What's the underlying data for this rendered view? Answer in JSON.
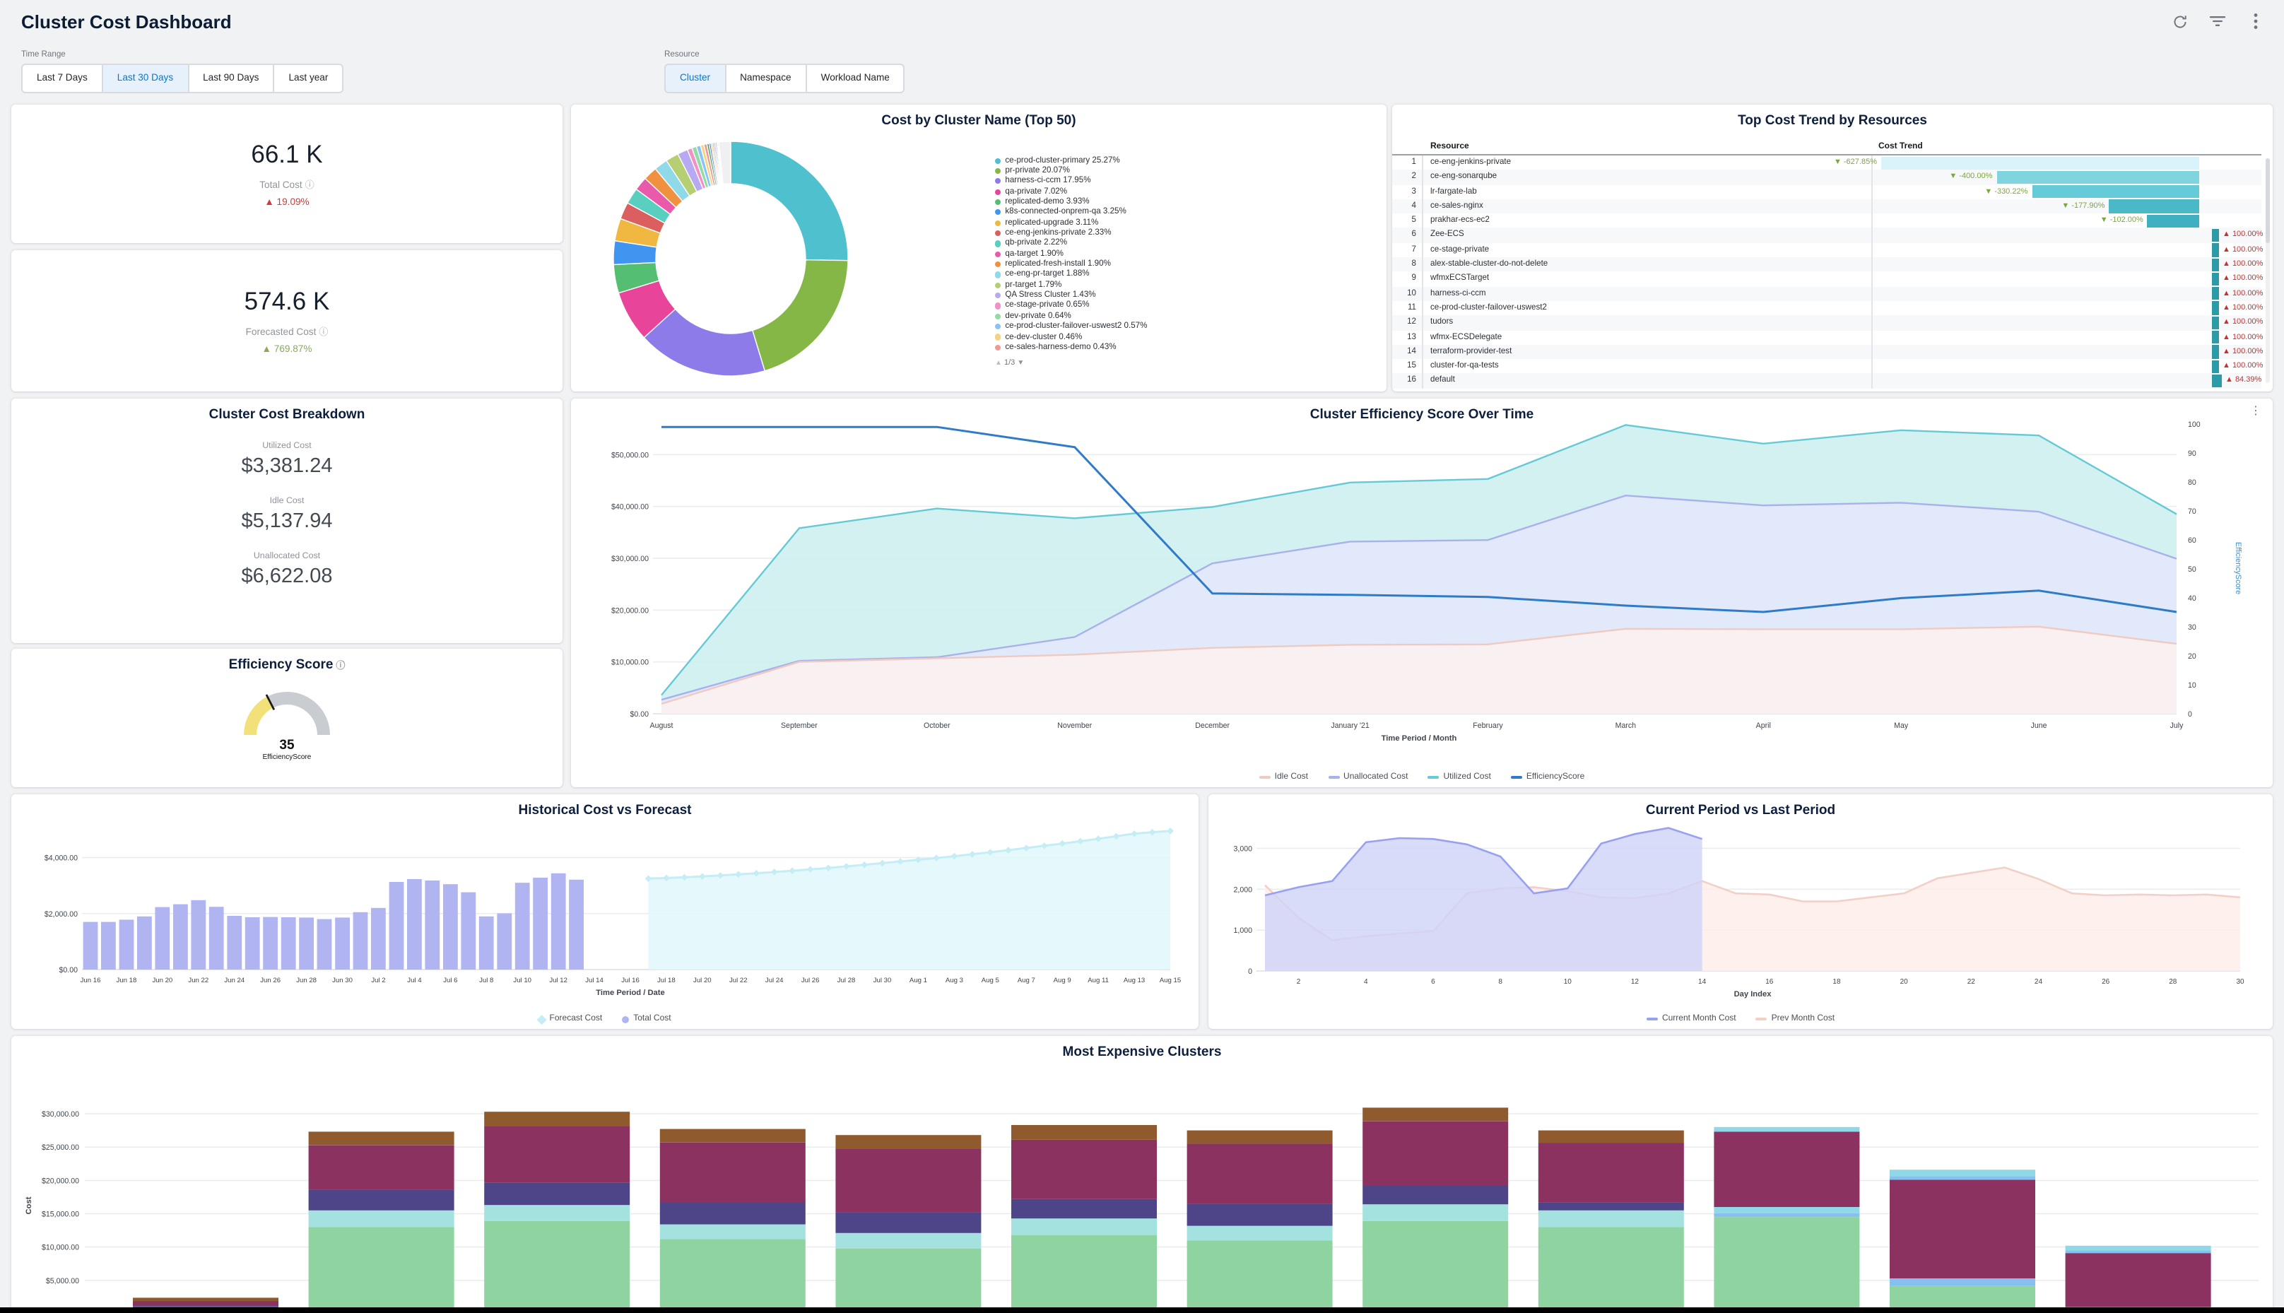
{
  "header": {
    "title": "Cluster Cost Dashboard"
  },
  "topbar_icons": [
    "refresh-icon",
    "filter-icon",
    "kebab-icon"
  ],
  "filters": {
    "time_range": {
      "label": "Time Range",
      "options": [
        "Last 7 Days",
        "Last 30 Days",
        "Last 90 Days",
        "Last year"
      ],
      "selected": "Last 30 Days"
    },
    "resource": {
      "label": "Resource",
      "options": [
        "Cluster",
        "Namespace",
        "Workload Name"
      ],
      "selected": "Cluster"
    }
  },
  "kpis": {
    "total": {
      "value": "66.1 K",
      "label": "Total Cost",
      "delta": "19.09%",
      "direction": "up",
      "delta_color": "#cf3b3b"
    },
    "forecast": {
      "value": "574.6 K",
      "label": "Forecasted Cost",
      "delta": "769.87%",
      "direction": "up",
      "delta_color": "#87ab56"
    }
  },
  "breakdown": {
    "title": "Cluster Cost Breakdown",
    "items": [
      {
        "label": "Utilized Cost",
        "value": "$3,381.24"
      },
      {
        "label": "Idle Cost",
        "value": "$5,137.94"
      },
      {
        "label": "Unallocated Cost",
        "value": "$6,622.08"
      }
    ]
  },
  "chart_data": [
    {
      "type": "pie",
      "title": "Cost by Cluster Name (Top 50)",
      "pagination": "1/3",
      "slices": [
        {
          "label": "ce-prod-cluster-primary",
          "pct": 25.27,
          "color": "#4fc0ce"
        },
        {
          "label": "pr-private",
          "pct": 20.07,
          "color": "#85b747"
        },
        {
          "label": "harness-ci-ccm",
          "pct": 17.95,
          "color": "#8d7be9"
        },
        {
          "label": "qa-private",
          "pct": 7.02,
          "color": "#e8449a"
        },
        {
          "label": "replicated-demo",
          "pct": 3.93,
          "color": "#54be73"
        },
        {
          "label": "k8s-connected-onprem-qa",
          "pct": 3.25,
          "color": "#4095f0"
        },
        {
          "label": "replicated-upgrade",
          "pct": 3.11,
          "color": "#f0b840"
        },
        {
          "label": "ce-eng-jenkins-private",
          "pct": 2.33,
          "color": "#db5f5f"
        },
        {
          "label": "qb-private",
          "pct": 2.22,
          "color": "#58cfbf"
        },
        {
          "label": "qa-target",
          "pct": 1.9,
          "color": "#ea5aab"
        },
        {
          "label": "replicated-fresh-install",
          "pct": 1.9,
          "color": "#f0913f"
        },
        {
          "label": "ce-eng-pr-target",
          "pct": 1.88,
          "color": "#8fd9e8"
        },
        {
          "label": "pr-target",
          "pct": 1.79,
          "color": "#b6cf73"
        },
        {
          "label": "QA Stress Cluster",
          "pct": 1.43,
          "color": "#b7a9f2"
        },
        {
          "label": "ce-stage-private",
          "pct": 0.65,
          "color": "#f291c6"
        },
        {
          "label": "dev-private",
          "pct": 0.64,
          "color": "#90dca2"
        },
        {
          "label": "ce-prod-cluster-failover-uswest2",
          "pct": 0.57,
          "color": "#88c3f5"
        },
        {
          "label": "ce-dev-cluster",
          "pct": 0.46,
          "color": "#f5d385"
        },
        {
          "label": "ce-sales-harness-demo",
          "pct": 0.43,
          "color": "#ee9b94"
        }
      ],
      "others": [
        {
          "pct": 0.3,
          "color": "#4a9c63"
        },
        {
          "pct": 0.25,
          "color": "#3a79c9"
        },
        {
          "pct": 0.22,
          "color": "#e8c84a"
        },
        {
          "pct": 0.2,
          "color": "#d9619c"
        },
        {
          "pct": 0.2,
          "color": "#56b8ae"
        },
        {
          "pct": 0.18,
          "color": "#8a6fd1"
        },
        {
          "pct": 0.15,
          "color": "#29506f"
        },
        {
          "pct": 0.15,
          "color": "#9aa0a6"
        },
        {
          "pct": 1.62,
          "color": "#f0f0f2"
        }
      ]
    },
    {
      "type": "table",
      "title": "Top Cost Trend by Resources",
      "columns": [
        "Resource",
        "Cost Trend"
      ],
      "max_abs_pct": 627.85,
      "rows": [
        {
          "n": 1,
          "resource": "ce-eng-jenkins-private",
          "pct": -627.85,
          "bar_color": "#d8f3fa"
        },
        {
          "n": 2,
          "resource": "ce-eng-sonarqube",
          "pct": -400.0,
          "bar_color": "#7fd4de"
        },
        {
          "n": 3,
          "resource": "lr-fargate-lab",
          "pct": -330.22,
          "bar_color": "#66cbd8"
        },
        {
          "n": 4,
          "resource": "ce-sales-nginx",
          "pct": -177.9,
          "bar_color": "#4bb8c8"
        },
        {
          "n": 5,
          "resource": "prakhar-ecs-ec2",
          "pct": -102.0,
          "bar_color": "#3fb0c2"
        },
        {
          "n": 6,
          "resource": "Zee-ECS",
          "pct": 100.0,
          "bar_color": "#2d9aa8"
        },
        {
          "n": 7,
          "resource": "ce-stage-private",
          "pct": 100.0,
          "bar_color": "#2d9aa8"
        },
        {
          "n": 8,
          "resource": "alex-stable-cluster-do-not-delete",
          "pct": 100.0,
          "bar_color": "#2d9aa8"
        },
        {
          "n": 9,
          "resource": "wfmxECSTarget",
          "pct": 100.0,
          "bar_color": "#2d9aa8"
        },
        {
          "n": 10,
          "resource": "harness-ci-ccm",
          "pct": 100.0,
          "bar_color": "#2d9aa8"
        },
        {
          "n": 11,
          "resource": "ce-prod-cluster-failover-uswest2",
          "pct": 100.0,
          "bar_color": "#2d9aa8"
        },
        {
          "n": 12,
          "resource": "tudors",
          "pct": 100.0,
          "bar_color": "#2d9aa8"
        },
        {
          "n": 13,
          "resource": "wfmx-ECSDelegate",
          "pct": 100.0,
          "bar_color": "#2d9aa8"
        },
        {
          "n": 14,
          "resource": "terraform-provider-test",
          "pct": 100.0,
          "bar_color": "#2d9aa8"
        },
        {
          "n": 15,
          "resource": "cluster-for-qa-tests",
          "pct": 100.0,
          "bar_color": "#2d9aa8"
        },
        {
          "n": 16,
          "resource": "default",
          "pct": 84.39,
          "bar_color": "#2d9aa8"
        }
      ]
    },
    {
      "type": "area",
      "title": "Cluster Efficiency Score Over Time",
      "xlabel": "Time Period / Month",
      "x": [
        "August",
        "September",
        "October",
        "November",
        "December",
        "January '21",
        "February",
        "March",
        "April",
        "May",
        "June",
        "July"
      ],
      "y_left_ticks": [
        "$0.00",
        "$10,000.00",
        "$20,000.00",
        "$30,000.00",
        "$40,000.00",
        "$50,000.00"
      ],
      "y_left_max": 55900,
      "y_right_label": "EfficiencyScore",
      "y_right_ticks": [
        0,
        10,
        20,
        30,
        40,
        50,
        60,
        70,
        80,
        90,
        100
      ],
      "series": [
        {
          "name": "Idle Cost",
          "axis": "left",
          "color": "#f0cac1",
          "fill": "#fdf1ee",
          "values": [
            1900,
            10000,
            10700,
            11400,
            12700,
            13300,
            13400,
            16400,
            16300,
            16300,
            16800,
            13500
          ]
        },
        {
          "name": "Unallocated Cost",
          "axis": "left",
          "color": "#a9b0ee",
          "fill": "#e4e7fb",
          "values": [
            2700,
            10200,
            10900,
            14800,
            29000,
            33200,
            33500,
            42100,
            40200,
            40700,
            39000,
            29900
          ]
        },
        {
          "name": "Utilized Cost",
          "axis": "left",
          "color": "#66c9d6",
          "fill": "#cdeeee",
          "values": [
            3600,
            35800,
            39600,
            37700,
            39900,
            44600,
            45300,
            55700,
            52100,
            54700,
            53700,
            38500
          ]
        },
        {
          "name": "EfficiencyScore",
          "axis": "right",
          "color": "#2f7bc8",
          "values": [
            99,
            99,
            99,
            92,
            41.5,
            41,
            40.3,
            37.3,
            35.1,
            39.9,
            42.5,
            35.1
          ]
        }
      ]
    },
    {
      "type": "gauge",
      "title": "Efficiency Score",
      "value": 35,
      "max": 100,
      "label": "EfficiencyScore",
      "arc_color": "#f2e178",
      "track_color": "#c9cdd2"
    },
    {
      "type": "bar",
      "title": "Historical Cost vs Forecast",
      "xlabel": "Time Period / Date",
      "x_ticks": [
        "Jun 16",
        "Jun 18",
        "Jun 20",
        "Jun 22",
        "Jun 24",
        "Jun 26",
        "Jun 28",
        "Jun 30",
        "Jul 2",
        "Jul 4",
        "Jul 6",
        "Jul 8",
        "Jul 10",
        "Jul 12",
        "Jul 14",
        "Jul 16",
        "Jul 18",
        "Jul 20",
        "Jul 22",
        "Jul 24",
        "Jul 26",
        "Jul 28",
        "Jul 30",
        "Aug 1",
        "Aug 3",
        "Aug 5",
        "Aug 7",
        "Aug 9",
        "Aug 11",
        "Aug 13",
        "Aug 15"
      ],
      "y_ticks": [
        "$0.00",
        "$2,000.00",
        "$4,000.00"
      ],
      "y_max": 5250,
      "series": [
        {
          "name": "Total Cost",
          "kind": "bar",
          "color": "#b0b5f2",
          "start_index": 0,
          "values": [
            1700,
            1700,
            1780,
            1900,
            2230,
            2330,
            2480,
            2240,
            1920,
            1870,
            1880,
            1870,
            1860,
            1800,
            1860,
            2050,
            2200,
            3130,
            3230,
            3180,
            3050,
            2760,
            1900,
            2010,
            3100,
            3280,
            3440,
            3210
          ]
        },
        {
          "name": "Forecast Cost",
          "kind": "line",
          "color": "#c4edf5",
          "fill": "#e2f7fb",
          "marker": "diamond",
          "start_index": 31,
          "values": [
            3250,
            3270,
            3295,
            3325,
            3360,
            3400,
            3440,
            3485,
            3530,
            3580,
            3630,
            3685,
            3740,
            3800,
            3860,
            3920,
            3985,
            4050,
            4120,
            4190,
            4265,
            4340,
            4420,
            4500,
            4585,
            4670,
            4760,
            4850,
            4905,
            4950
          ]
        }
      ]
    },
    {
      "type": "area",
      "title": "Current Period vs Last Period",
      "xlabel": "Day Index",
      "x_ticks": [
        2,
        4,
        6,
        8,
        10,
        12,
        14,
        16,
        18,
        20,
        22,
        24,
        26,
        28,
        30
      ],
      "x_max": 30,
      "y_ticks": [
        "0",
        "1,000",
        "2,000",
        "3,000"
      ],
      "y_max": 3700,
      "series": [
        {
          "name": "Prev Month Cost",
          "color": "#f2d0c8",
          "fill": "#fcece8",
          "values": [
            2100,
            1300,
            750,
            850,
            920,
            970,
            1900,
            2020,
            2050,
            1950,
            1800,
            1780,
            1900,
            2200,
            1900,
            1870,
            1700,
            1700,
            1800,
            1900,
            2270,
            2400,
            2530,
            2250,
            1900,
            1850,
            1870,
            1850,
            1870,
            1800
          ]
        },
        {
          "name": "Current Month Cost",
          "color": "#98a1ef",
          "fill": "#ced3f8",
          "values": [
            1850,
            2050,
            2200,
            3150,
            3250,
            3230,
            3100,
            2800,
            1900,
            2020,
            3120,
            3350,
            3500,
            3230
          ]
        }
      ],
      "legend_order": [
        "Current Month Cost",
        "Prev Month Cost"
      ]
    },
    {
      "type": "bar",
      "title": "Most Expensive Clusters",
      "ylabel": "Cost",
      "y_ticks": [
        "$5,000.00",
        "$10,000.00",
        "$15,000.00",
        "$20,000.00",
        "$25,000.00",
        "$30,000.00"
      ],
      "colors": {
        "green": "#8fd4a0",
        "cyan": "#a3e2de",
        "indigo": "#4d4587",
        "maroon": "#8c3260",
        "brown": "#8f5a2e",
        "skyblue": "#85c0ee",
        "ltcyan": "#8fd8e8"
      },
      "bars": [
        {
          "segments": [
            [
              "green",
              300
            ],
            [
              "cyan",
              300
            ],
            [
              "skyblue",
              200
            ],
            [
              "indigo",
              350
            ],
            [
              "maroon",
              750
            ],
            [
              "brown",
              500
            ]
          ]
        },
        {
          "segments": [
            [
              "green",
              13000
            ],
            [
              "cyan",
              2500
            ],
            [
              "indigo",
              3100
            ],
            [
              "maroon",
              6700
            ],
            [
              "brown",
              2000
            ]
          ]
        },
        {
          "segments": [
            [
              "green",
              13900
            ],
            [
              "cyan",
              2400
            ],
            [
              "indigo",
              3400
            ],
            [
              "maroon",
              8400
            ],
            [
              "brown",
              2200
            ]
          ]
        },
        {
          "segments": [
            [
              "green",
              11200
            ],
            [
              "cyan",
              2200
            ],
            [
              "indigo",
              3300
            ],
            [
              "maroon",
              9000
            ],
            [
              "brown",
              2000
            ]
          ]
        },
        {
          "segments": [
            [
              "green",
              9800
            ],
            [
              "cyan",
              2300
            ],
            [
              "indigo",
              3100
            ],
            [
              "maroon",
              9500
            ],
            [
              "brown",
              2100
            ]
          ]
        },
        {
          "segments": [
            [
              "green",
              11800
            ],
            [
              "cyan",
              2500
            ],
            [
              "indigo",
              2900
            ],
            [
              "maroon",
              8900
            ],
            [
              "brown",
              2200
            ]
          ]
        },
        {
          "segments": [
            [
              "green",
              11000
            ],
            [
              "cyan",
              2200
            ],
            [
              "indigo",
              3300
            ],
            [
              "maroon",
              9000
            ],
            [
              "brown",
              2000
            ]
          ]
        },
        {
          "segments": [
            [
              "green",
              13900
            ],
            [
              "cyan",
              2500
            ],
            [
              "indigo",
              2800
            ],
            [
              "maroon",
              9700
            ],
            [
              "brown",
              2000
            ]
          ]
        },
        {
          "segments": [
            [
              "green",
              13000
            ],
            [
              "cyan",
              2500
            ],
            [
              "indigo",
              1200
            ],
            [
              "maroon",
              8900
            ],
            [
              "brown",
              1900
            ]
          ]
        },
        {
          "segments": [
            [
              "green",
              14500
            ],
            [
              "skyblue",
              600
            ],
            [
              "ltcyan",
              900
            ],
            [
              "maroon",
              11300
            ],
            [
              "ltcyan",
              700
            ]
          ]
        },
        {
          "segments": [
            [
              "green",
              4200
            ],
            [
              "skyblue",
              1100
            ],
            [
              "maroon",
              14800
            ],
            [
              "skyblue",
              500
            ],
            [
              "ltcyan",
              1000
            ]
          ]
        },
        {
          "segments": [
            [
              "green",
              500
            ],
            [
              "skyblue",
              500
            ],
            [
              "maroon",
              8100
            ],
            [
              "skyblue",
              400
            ],
            [
              "ltcyan",
              700
            ]
          ]
        }
      ]
    }
  ]
}
